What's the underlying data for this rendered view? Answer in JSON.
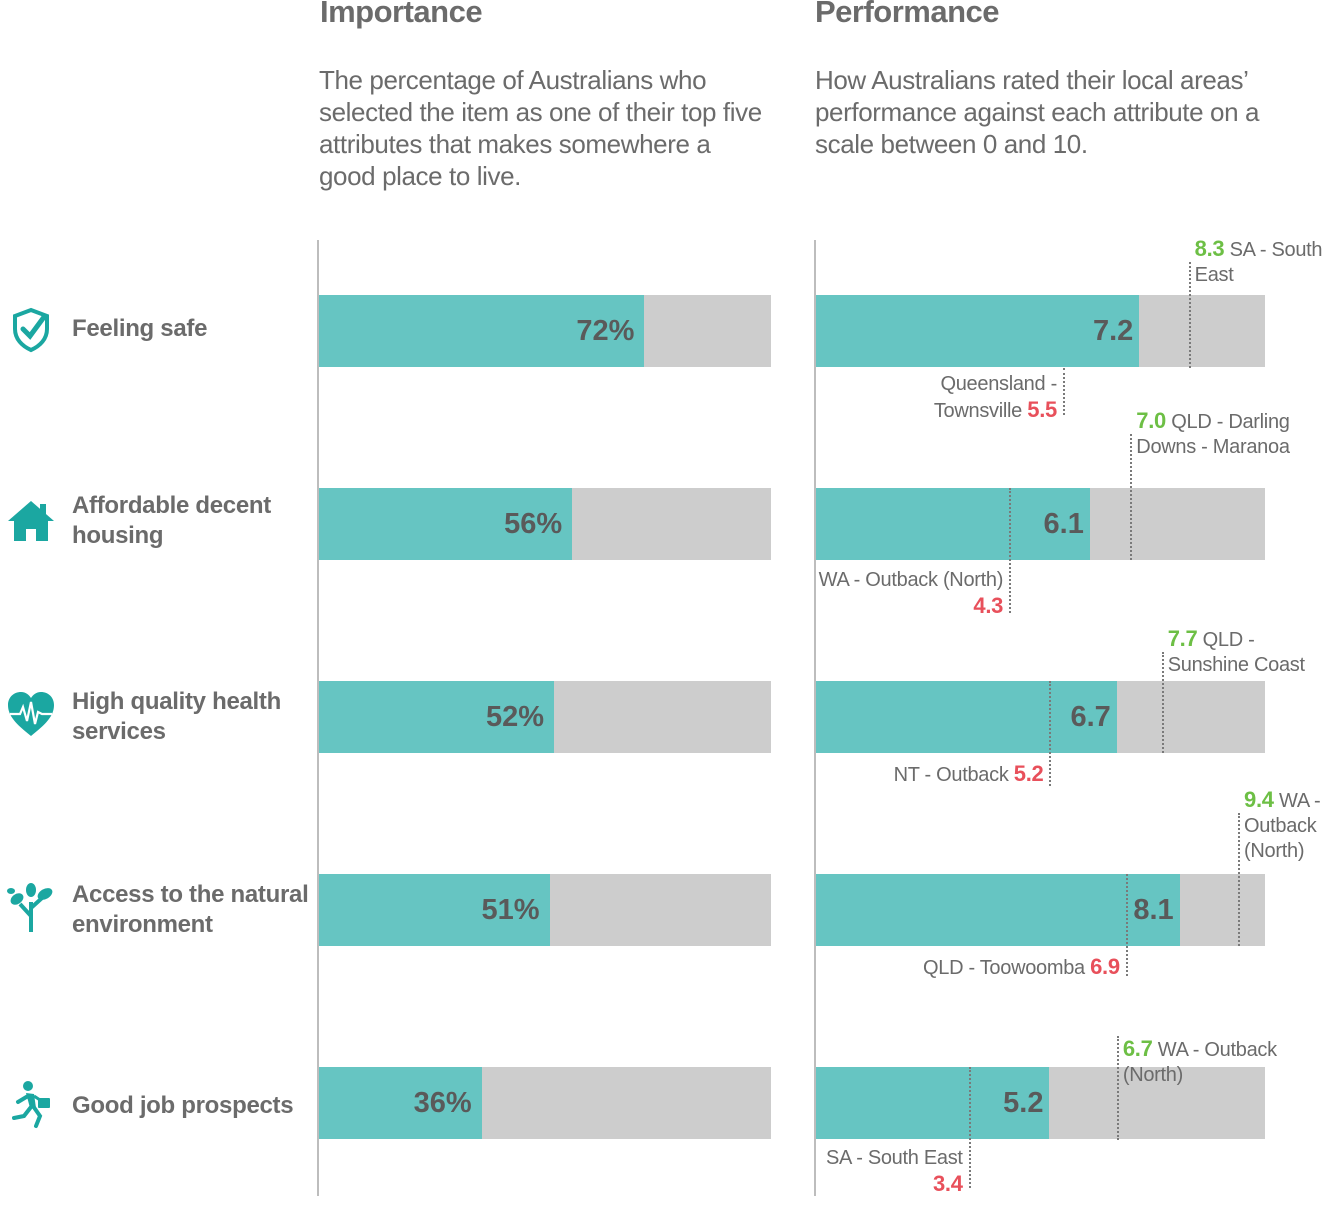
{
  "importance": {
    "title": "Importance",
    "description": "The percentage of Australians who selected the item as one of their top five attributes that makes somewhere a good place to live."
  },
  "performance": {
    "title": "Performance",
    "description": "How Australians rated their local areas’ performance against each attribute on a scale between 0 and 10."
  },
  "colors": {
    "fill": "#66c5c2",
    "track": "#cdcdcd",
    "high": "#6dbf45",
    "low": "#e8505b",
    "icon": "#1ba7a1"
  },
  "rows": [
    {
      "label": "Feeling safe",
      "icon": "shield-check-icon",
      "importance_label": "72%",
      "performance_label": "7.2",
      "high": {
        "value": "8.3",
        "region": "SA - South East"
      },
      "low": {
        "value": "5.5",
        "region": "Queensland - Townsville"
      }
    },
    {
      "label": "Affordable decent housing",
      "icon": "house-icon",
      "importance_label": "56%",
      "performance_label": "6.1",
      "high": {
        "value": "7.0",
        "region": "QLD - Darling Downs - Maranoa"
      },
      "low": {
        "value": "4.3",
        "region": "WA - Outback (North)"
      }
    },
    {
      "label": "High quality health services",
      "icon": "heart-pulse-icon",
      "importance_label": "52%",
      "performance_label": "6.7",
      "high": {
        "value": "7.7",
        "region": "QLD - Sunshine Coast"
      },
      "low": {
        "value": "5.2",
        "region": "NT - Outback"
      }
    },
    {
      "label": "Access to the natural environment",
      "icon": "tree-icon",
      "importance_label": "51%",
      "performance_label": "8.1",
      "high": {
        "value": "9.4",
        "region": "WA - Outback (North)"
      },
      "low": {
        "value": "6.9",
        "region": "QLD - Toowoomba"
      }
    },
    {
      "label": "Good job prospects",
      "icon": "running-businessman-icon",
      "importance_label": "36%",
      "performance_label": "5.2",
      "high": {
        "value": "6.7",
        "region": "WA - Outback (North)"
      },
      "low": {
        "value": "3.4",
        "region": "SA - South East"
      }
    }
  ],
  "chart_data": [
    {
      "type": "bar",
      "title": "Importance",
      "categories": [
        "Feeling safe",
        "Affordable decent housing",
        "High quality health services",
        "Access to the natural environment",
        "Good job prospects"
      ],
      "values": [
        72,
        56,
        52,
        51,
        36
      ],
      "ylim": [
        0,
        100
      ]
    },
    {
      "type": "bar",
      "title": "Performance",
      "categories": [
        "Feeling safe",
        "Affordable decent housing",
        "High quality health services",
        "Access to the natural environment",
        "Good job prospects"
      ],
      "values": [
        7.2,
        6.1,
        6.7,
        8.1,
        5.2
      ],
      "high": [
        8.3,
        7.0,
        7.7,
        9.4,
        6.7
      ],
      "low": [
        5.5,
        4.3,
        5.2,
        6.9,
        3.4
      ],
      "ylim": [
        0,
        10
      ]
    }
  ]
}
